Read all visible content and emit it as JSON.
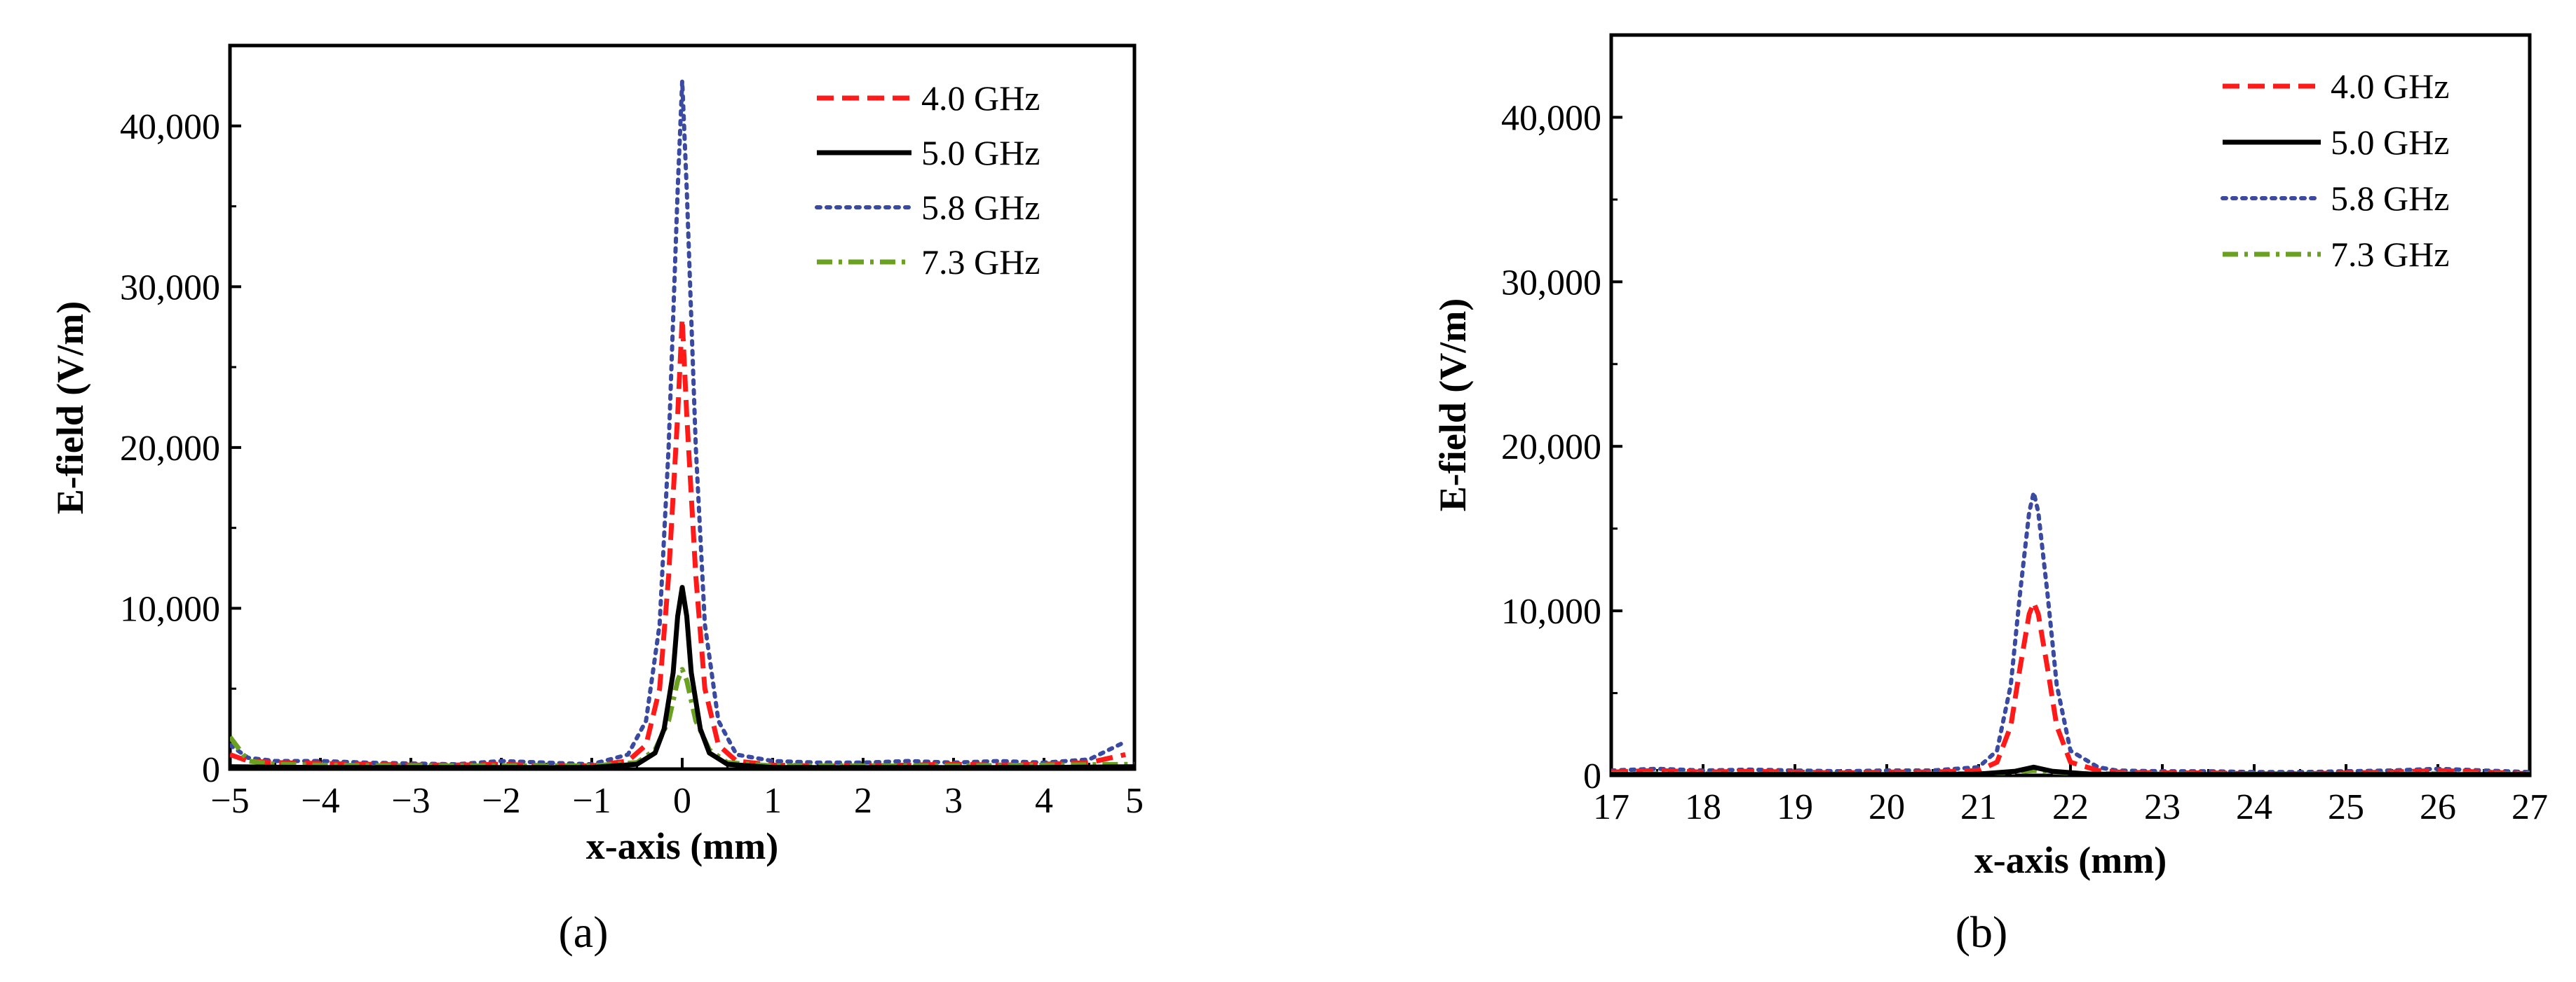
{
  "colors": {
    "4.0 GHz": "#ff1a1a",
    "5.0 GHz": "#000000",
    "5.8 GHz": "#3a4aa0",
    "7.3 GHz": "#6aa121"
  },
  "line_styles": {
    "4.0 GHz": "dashed",
    "5.0 GHz": "solid",
    "5.8 GHz": "dotted",
    "7.3 GHz": "dash-dot"
  },
  "chart_data": [
    {
      "panel_label": "(a)",
      "type": "line",
      "xlabel": "x-axis (mm)",
      "ylabel": "E-field (V/m)",
      "xlim": [
        -5,
        5
      ],
      "ylim": [
        0,
        45000
      ],
      "xticks": [
        -5,
        -4,
        -3,
        -2,
        -1,
        0,
        1,
        2,
        3,
        4,
        5
      ],
      "xtick_labels": [
        "−5",
        "−4",
        "−3",
        "−2",
        "−1",
        "0",
        "1",
        "2",
        "3",
        "4",
        "5"
      ],
      "yticks": [
        0,
        10000,
        20000,
        30000,
        40000
      ],
      "ytick_labels": [
        "0",
        "10,000",
        "20,000",
        "30,000",
        "40,000"
      ],
      "legend_position": "top-right",
      "grid": false,
      "series": [
        {
          "name": "4.0 GHz",
          "x": [
            -5,
            -4.8,
            -4.5,
            -4,
            -3.5,
            -3,
            -2.5,
            -2,
            -1.5,
            -1,
            -0.6,
            -0.4,
            -0.25,
            -0.15,
            -0.05,
            0,
            0.05,
            0.15,
            0.25,
            0.4,
            0.6,
            1,
            1.5,
            2,
            2.5,
            3,
            3.5,
            4,
            4.5,
            4.9
          ],
          "y": [
            900,
            500,
            400,
            350,
            300,
            250,
            250,
            300,
            200,
            200,
            500,
            1500,
            5000,
            12000,
            22000,
            28000,
            22000,
            12000,
            5000,
            1500,
            500,
            250,
            200,
            200,
            250,
            300,
            250,
            300,
            400,
            900
          ]
        },
        {
          "name": "5.0 GHz",
          "x": [
            -5,
            -4.5,
            -4,
            -3,
            -2,
            -1,
            -0.5,
            -0.3,
            -0.2,
            -0.1,
            -0.05,
            0,
            0.05,
            0.1,
            0.2,
            0.3,
            0.5,
            1,
            2,
            3,
            4,
            5
          ],
          "y": [
            150,
            120,
            100,
            100,
            100,
            100,
            300,
            1000,
            2500,
            6000,
            9500,
            11300,
            9500,
            6000,
            2500,
            1000,
            300,
            100,
            100,
            100,
            100,
            150
          ]
        },
        {
          "name": "5.8 GHz",
          "x": [
            -5,
            -4.8,
            -4.5,
            -4,
            -3.5,
            -3,
            -2.5,
            -2,
            -1.5,
            -1,
            -0.6,
            -0.4,
            -0.25,
            -0.15,
            -0.05,
            0,
            0.05,
            0.15,
            0.25,
            0.4,
            0.6,
            1,
            1.5,
            2,
            2.5,
            3,
            3.5,
            4,
            4.5,
            4.9
          ],
          "y": [
            1500,
            700,
            500,
            500,
            400,
            350,
            300,
            500,
            400,
            300,
            900,
            3000,
            9000,
            20000,
            36000,
            42800,
            36000,
            20000,
            9000,
            3000,
            900,
            500,
            400,
            400,
            500,
            400,
            500,
            400,
            600,
            1700
          ]
        },
        {
          "name": "7.3 GHz",
          "x": [
            -5,
            -4.8,
            -4.5,
            -4,
            -3,
            -2,
            -1,
            -0.5,
            -0.3,
            -0.15,
            -0.05,
            0,
            0.05,
            0.15,
            0.3,
            0.5,
            1,
            2,
            3,
            4,
            5
          ],
          "y": [
            2000,
            500,
            300,
            250,
            200,
            200,
            200,
            400,
            1200,
            3000,
            5500,
            6200,
            5500,
            3000,
            1200,
            400,
            200,
            200,
            200,
            250,
            300
          ]
        }
      ]
    },
    {
      "panel_label": "(b)",
      "type": "line",
      "xlabel": "x-axis (mm)",
      "ylabel": "E-field (V/m)",
      "xlim": [
        17,
        27
      ],
      "ylim": [
        0,
        45000
      ],
      "xticks": [
        17,
        18,
        19,
        20,
        21,
        22,
        23,
        24,
        25,
        26,
        27
      ],
      "xtick_labels": [
        "17",
        "18",
        "19",
        "20",
        "21",
        "22",
        "23",
        "24",
        "25",
        "26",
        "27"
      ],
      "yticks": [
        0,
        10000,
        20000,
        30000,
        40000
      ],
      "ytick_labels": [
        "0",
        "10,000",
        "20,000",
        "30,000",
        "40,000"
      ],
      "legend_position": "top-right",
      "grid": false,
      "series": [
        {
          "name": "4.0 GHz",
          "x": [
            17,
            17.5,
            18,
            18.5,
            19,
            19.5,
            20,
            20.5,
            21,
            21.2,
            21.35,
            21.45,
            21.55,
            21.6,
            21.65,
            21.75,
            21.85,
            22,
            22.3,
            22.5,
            23,
            23.5,
            24,
            24.5,
            25,
            25.5,
            26,
            26.5,
            27
          ],
          "y": [
            200,
            300,
            200,
            250,
            200,
            150,
            200,
            200,
            300,
            800,
            3000,
            6500,
            9800,
            10500,
            9800,
            6500,
            3000,
            800,
            300,
            200,
            150,
            150,
            100,
            100,
            150,
            200,
            300,
            200,
            100
          ]
        },
        {
          "name": "5.0 GHz",
          "x": [
            17,
            18,
            19,
            20,
            21,
            21.4,
            21.6,
            21.8,
            22.2,
            23,
            24,
            25,
            26,
            27
          ],
          "y": [
            50,
            50,
            50,
            50,
            80,
            250,
            500,
            250,
            80,
            50,
            50,
            50,
            50,
            50
          ]
        },
        {
          "name": "5.8 GHz",
          "x": [
            17,
            17.5,
            18,
            18.5,
            19,
            19.5,
            20,
            20.5,
            21,
            21.2,
            21.35,
            21.45,
            21.55,
            21.6,
            21.65,
            21.75,
            21.85,
            22,
            22.3,
            22.5,
            23,
            23.5,
            24,
            24.5,
            25,
            25.5,
            26,
            26.5,
            27
          ],
          "y": [
            300,
            400,
            300,
            350,
            300,
            250,
            300,
            300,
            500,
            1500,
            5500,
            11000,
            16000,
            17200,
            16000,
            11000,
            5500,
            1500,
            500,
            300,
            250,
            250,
            200,
            200,
            250,
            300,
            400,
            300,
            200
          ]
        },
        {
          "name": "7.3 GHz",
          "x": [
            17,
            18,
            19,
            20,
            21,
            21.4,
            21.6,
            21.8,
            22.2,
            23,
            24,
            25,
            26,
            27
          ],
          "y": [
            100,
            100,
            80,
            80,
            100,
            200,
            300,
            200,
            100,
            80,
            80,
            80,
            100,
            100
          ]
        }
      ]
    }
  ]
}
